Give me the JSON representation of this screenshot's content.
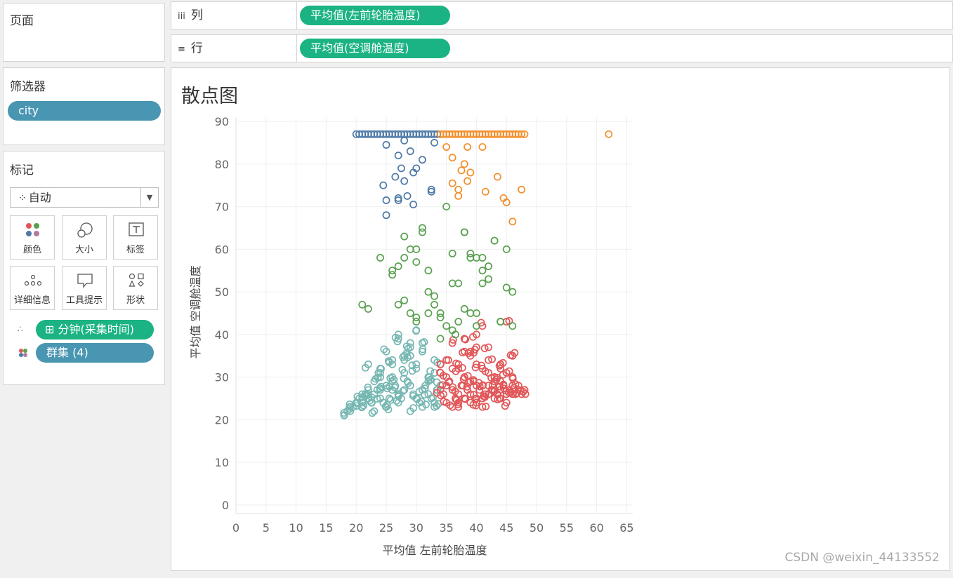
{
  "pages_panel": {
    "title": "页面"
  },
  "columns_shelf": {
    "icon": "iii",
    "label": "列",
    "pill": "平均值(左前轮胎温度)"
  },
  "rows_shelf": {
    "icon": "≡",
    "label": "行",
    "pill": "平均值(空调舱温度)"
  },
  "filters_panel": {
    "title": "筛选器",
    "pill": "city"
  },
  "marks_panel": {
    "title": "标记",
    "mark_type": "自动",
    "mark_type_icon": "⁘",
    "buttons": [
      {
        "label": "颜色",
        "icon": "color-icon"
      },
      {
        "label": "大小",
        "icon": "size-icon"
      },
      {
        "label": "标签",
        "icon": "label-icon"
      },
      {
        "label": "详细信息",
        "icon": "detail-icon"
      },
      {
        "label": "工具提示",
        "icon": "tooltip-icon"
      },
      {
        "label": "形状",
        "icon": "shape-icon"
      }
    ],
    "fields": [
      {
        "label": "⊞ 分钟(采集时间)",
        "icon": "detail-icon",
        "color": "#1bb383"
      },
      {
        "label": "群集 (4)",
        "icon": "color-icon",
        "color": "#4996b2"
      }
    ]
  },
  "view": {
    "title": "散点图"
  },
  "watermark": "CSDN @weixin_44133552",
  "colors": {
    "cluster_blue": "#4e79a7",
    "cluster_orange": "#f28e2b",
    "cluster_green": "#59a14f",
    "cluster_teal": "#76b7b2",
    "cluster_red": "#e15759"
  },
  "chart_data": {
    "type": "scatter",
    "xlabel": "平均值 左前轮胎温度",
    "ylabel": "平均值 空调舱温度",
    "xlim": [
      0,
      66
    ],
    "ylim": [
      -2,
      91
    ],
    "xticks": [
      0,
      5,
      10,
      15,
      20,
      25,
      30,
      35,
      40,
      45,
      50,
      55,
      60,
      65
    ],
    "yticks": [
      0,
      10,
      20,
      30,
      40,
      50,
      60,
      70,
      80,
      90
    ],
    "marker": "open-circle",
    "grid": true,
    "series": [
      {
        "key": "blue",
        "color": "#4e79a7",
        "x": [
          20,
          21,
          22,
          23,
          24,
          25,
          26,
          27,
          28,
          29,
          30,
          31,
          32,
          33,
          20.5,
          21.5,
          22.5,
          23.5,
          24.5,
          25.5,
          26.5,
          27.5,
          28.5,
          29.5,
          30.5,
          31.5,
          32.5,
          33.5,
          25,
          28,
          33,
          27,
          29,
          31,
          27.5,
          30,
          26.5,
          29.5,
          28,
          24.5,
          25,
          27,
          27,
          32.5,
          28.5,
          29.5,
          32.5,
          25
        ],
        "y": [
          87,
          87,
          87,
          87,
          87,
          87,
          87,
          87,
          87,
          87,
          87,
          87,
          87,
          87,
          87,
          87,
          87,
          87,
          87,
          87,
          87,
          87,
          87,
          87,
          87,
          87,
          87,
          87,
          84.5,
          85.5,
          85,
          82,
          83,
          81,
          79,
          79,
          77,
          78,
          76,
          75,
          71.5,
          72,
          71.5,
          74,
          72.5,
          70.5,
          73.5,
          68
        ]
      },
      {
        "key": "orange",
        "color": "#f28e2b",
        "x": [
          34,
          35,
          36,
          37,
          38,
          39,
          40,
          41,
          42,
          43,
          44,
          45,
          46,
          47,
          48,
          34.5,
          35.5,
          36.5,
          37.5,
          38.5,
          39.5,
          40.5,
          41.5,
          42.5,
          43.5,
          44.5,
          45.5,
          46.5,
          47.5,
          62,
          35,
          38.5,
          41,
          36,
          38,
          39,
          37.5,
          38.5,
          36,
          37,
          37,
          43.5,
          41.5,
          44.5,
          45,
          47.5,
          46
        ],
        "y": [
          87,
          87,
          87,
          87,
          87,
          87,
          87,
          87,
          87,
          87,
          87,
          87,
          87,
          87,
          87,
          87,
          87,
          87,
          87,
          87,
          87,
          87,
          87,
          87,
          87,
          87,
          87,
          87,
          87,
          87,
          84,
          84,
          84,
          81.5,
          80,
          78,
          78.5,
          76,
          75.5,
          74,
          72.5,
          77,
          73.5,
          72,
          71,
          74,
          66.5
        ]
      },
      {
        "key": "green",
        "color": "#59a14f",
        "x": [
          21,
          22,
          24,
          26,
          27,
          28,
          29,
          30,
          31,
          32,
          33,
          34,
          35,
          36,
          36.5,
          37,
          38,
          39,
          40,
          41,
          42,
          43,
          44,
          45,
          46,
          27,
          29,
          31,
          33,
          35,
          37,
          39,
          41,
          43,
          45,
          30,
          32,
          34,
          38,
          40,
          42,
          28,
          30,
          32,
          36,
          38,
          40,
          44,
          46,
          26,
          28,
          30,
          34,
          36,
          39,
          41
        ],
        "y": [
          47,
          46,
          58,
          55,
          56,
          63,
          60,
          57,
          65,
          50,
          49,
          44,
          42,
          41,
          40,
          43,
          46,
          59,
          58,
          52,
          53,
          62,
          43,
          51,
          50,
          47,
          45,
          64,
          47,
          70,
          52,
          58,
          58,
          62,
          60,
          60,
          55,
          45,
          64,
          45,
          56,
          58,
          44,
          45,
          52,
          64,
          42,
          43,
          42,
          54,
          48,
          43,
          39,
          59,
          45,
          55
        ]
      },
      {
        "key": "teal",
        "color": "#76b7b2",
        "x": [
          18,
          18.5,
          19,
          19.5,
          20,
          20.5,
          21,
          21.5,
          22,
          22.5,
          23,
          23.5,
          24,
          24.5,
          25,
          25.5,
          26,
          26.5,
          27,
          27.5,
          28,
          28.5,
          29,
          29.5,
          30,
          30.5,
          31,
          31.5,
          32,
          32.5,
          33,
          33.5,
          19,
          21,
          23,
          25,
          27,
          29,
          31,
          33,
          20,
          22,
          24,
          26,
          28,
          30,
          32,
          34,
          22,
          24,
          26,
          28,
          30,
          32,
          23,
          25,
          27,
          29,
          31,
          33,
          21,
          24,
          26,
          29,
          32,
          22,
          25,
          27,
          30,
          33,
          24,
          28,
          31,
          26,
          29
        ],
        "y": [
          21,
          22,
          23,
          23,
          24,
          25,
          24,
          26,
          25,
          24,
          26,
          27,
          25,
          24,
          23,
          25,
          27,
          28,
          26,
          25,
          27,
          29,
          28,
          26,
          25,
          24,
          27,
          28,
          26,
          25,
          24,
          27,
          22,
          23,
          22,
          23,
          24,
          22,
          23,
          23,
          24,
          26,
          30,
          29,
          31,
          33,
          30,
          28,
          27,
          32,
          33,
          35,
          32,
          29,
          29,
          36,
          40,
          38,
          36,
          34,
          26,
          31,
          34,
          37,
          30,
          33,
          28,
          39,
          41,
          31,
          27,
          34,
          38,
          30,
          35
        ],
        "density": 2
      },
      {
        "key": "red",
        "color": "#e15759",
        "x": [
          34,
          34.5,
          35,
          35.5,
          36,
          36.5,
          37,
          37.5,
          38,
          38.5,
          39,
          39.5,
          40,
          40.5,
          41,
          41.5,
          42,
          42.5,
          43,
          43.5,
          44,
          44.5,
          45,
          45.5,
          46,
          46.5,
          47,
          47.5,
          48,
          35,
          36,
          37,
          38,
          39,
          40,
          41,
          42,
          43,
          44,
          45,
          46,
          34,
          36,
          38,
          40,
          42,
          44,
          46,
          48,
          35,
          37,
          39,
          41,
          43,
          45,
          47,
          36,
          38,
          40,
          42,
          44,
          46,
          35,
          37,
          39,
          41,
          43,
          45,
          34,
          38,
          40,
          44,
          46,
          37,
          40,
          43,
          39,
          42,
          41,
          45
        ],
        "y": [
          27,
          26,
          28,
          29,
          27,
          25,
          26,
          28,
          30,
          27,
          26,
          29,
          28,
          27,
          25,
          26,
          28,
          27,
          29,
          26,
          27,
          28,
          26,
          27,
          28,
          26,
          27,
          26,
          27,
          24,
          23,
          24,
          25,
          24,
          25,
          23,
          26,
          27,
          25,
          24,
          26,
          31,
          32,
          30,
          33,
          31,
          29,
          30,
          27,
          34,
          33,
          35,
          32,
          30,
          31,
          28,
          38,
          36,
          37,
          34,
          33,
          35,
          30,
          32,
          29,
          28,
          30,
          31,
          33,
          39,
          40,
          32,
          35,
          23,
          24,
          25,
          36,
          37,
          42,
          43
        ],
        "density": 2
      }
    ]
  }
}
